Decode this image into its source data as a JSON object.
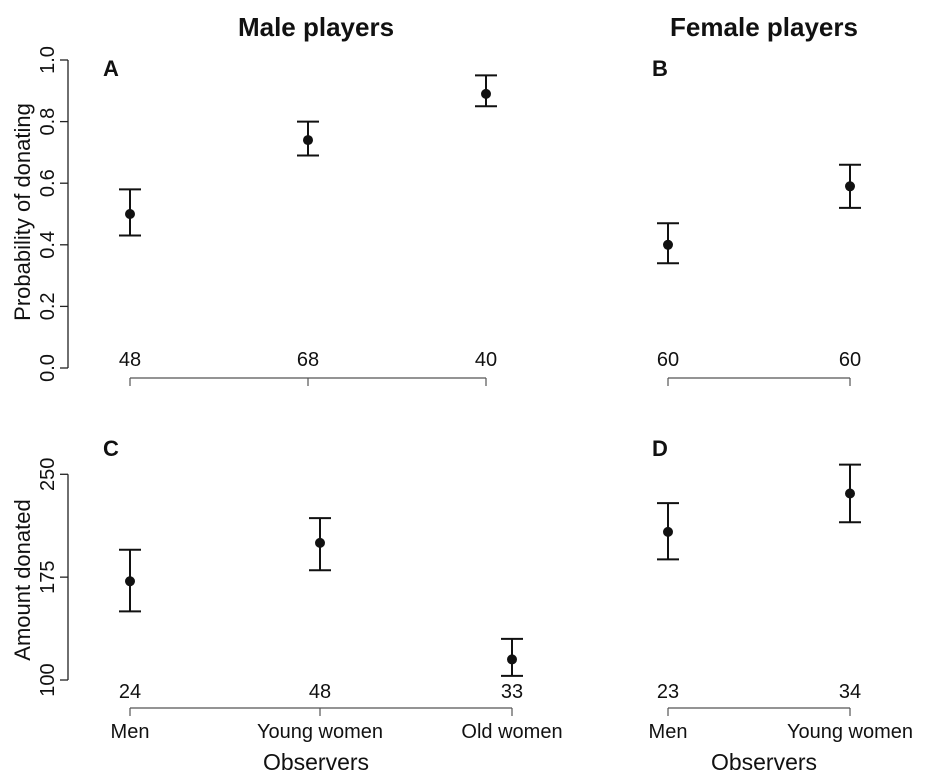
{
  "titles": {
    "male": "Male players",
    "female": "Female players"
  },
  "axis_labels": {
    "probability": "Probability of donating",
    "amount": "Amount donated",
    "observers_left": "Observers",
    "observers_right": "Observers"
  },
  "categories": {
    "left": [
      "Men",
      "Young women",
      "Old women"
    ],
    "right": [
      "Men",
      "Young women"
    ]
  },
  "chart_data": [
    {
      "type": "scatter",
      "panel": "A",
      "group": "Male players",
      "ylabel": "Probability of donating",
      "ylim": [
        0.0,
        1.0
      ],
      "yticks": [
        "0.0",
        "0.2",
        "0.4",
        "0.6",
        "0.8",
        "1.0"
      ],
      "categories": [
        "Men",
        "Young women",
        "Old women"
      ],
      "values": [
        0.5,
        0.74,
        0.89
      ],
      "lower": [
        0.43,
        0.69,
        0.85
      ],
      "upper": [
        0.58,
        0.8,
        0.95
      ],
      "n": [
        "48",
        "68",
        "40"
      ]
    },
    {
      "type": "scatter",
      "panel": "B",
      "group": "Female players",
      "ylim": [
        0.0,
        1.0
      ],
      "categories": [
        "Men",
        "Young women"
      ],
      "values": [
        0.4,
        0.59
      ],
      "lower": [
        0.34,
        0.52
      ],
      "upper": [
        0.47,
        0.66
      ],
      "n": [
        "60",
        "60"
      ]
    },
    {
      "type": "scatter",
      "panel": "C",
      "group": "Male players",
      "ylabel": "Amount donated",
      "xlabel": "Observers",
      "ylim": [
        100,
        275
      ],
      "yticks": [
        "100",
        "175",
        "250"
      ],
      "categories": [
        "Men",
        "Young women",
        "Old women"
      ],
      "values": [
        172,
        200,
        115
      ],
      "lower": [
        150,
        180,
        103
      ],
      "upper": [
        195,
        218,
        130
      ],
      "n": [
        "24",
        "48",
        "33"
      ]
    },
    {
      "type": "scatter",
      "panel": "D",
      "group": "Female players",
      "xlabel": "Observers",
      "ylim": [
        100,
        275
      ],
      "categories": [
        "Men",
        "Young women"
      ],
      "values": [
        208,
        236
      ],
      "lower": [
        188,
        215
      ],
      "upper": [
        229,
        257
      ],
      "n": [
        "23",
        "34"
      ]
    }
  ]
}
